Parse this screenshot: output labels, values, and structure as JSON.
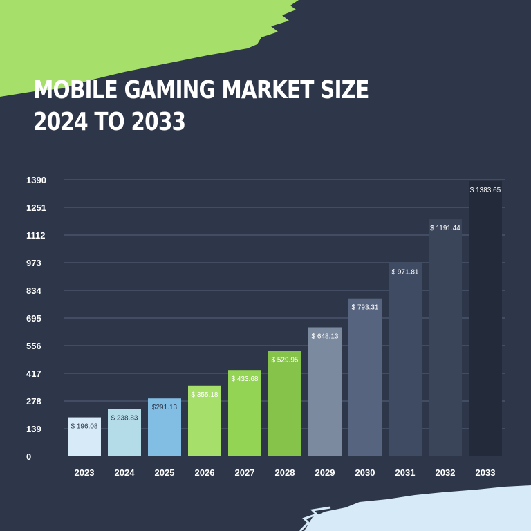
{
  "colors": {
    "background": "#2e3749",
    "accent_green": "#a6e06a",
    "accent_light_blue": "#d6ebf7",
    "gridline": "#55607a",
    "text": "#ffffff"
  },
  "header": {
    "title_line1": "MOBILE GAMING MARKET SIZE",
    "title_line2": "2024 TO 2033"
  },
  "chart_data": {
    "type": "bar",
    "title": "MOBILE GAMING MARKET SIZE 2024 TO 2033",
    "xlabel": "",
    "ylabel": "",
    "categories": [
      "2023",
      "2024",
      "2025",
      "2026",
      "2027",
      "2028",
      "2029",
      "2030",
      "2031",
      "2032",
      "2033"
    ],
    "values": [
      196.08,
      238.83,
      291.13,
      355.18,
      433.68,
      529.95,
      648.13,
      793.31,
      971.81,
      1191.44,
      1383.65
    ],
    "value_labels": [
      "$ 196.08",
      "$ 238.83",
      "$291.13",
      "$ 355.18",
      "$ 433.68",
      "$ 529.95",
      "$ 648.13",
      "$ 793.31",
      "$ 971.81",
      "$ 1191.44",
      "$ 1383.65"
    ],
    "bar_colors": [
      "#d6ebf7",
      "#b4dbe8",
      "#82bde4",
      "#a6e06a",
      "#94d455",
      "#86c34b",
      "#7c8a9f",
      "#566480",
      "#3f4b63",
      "#3b4559",
      "#232b3a"
    ],
    "y_ticks": [
      "0",
      "139",
      "278",
      "417",
      "556",
      "695",
      "834",
      "973",
      "1112",
      "1251",
      "1390"
    ],
    "ylim": [
      0,
      1390
    ],
    "grid": true,
    "legend": "none"
  }
}
